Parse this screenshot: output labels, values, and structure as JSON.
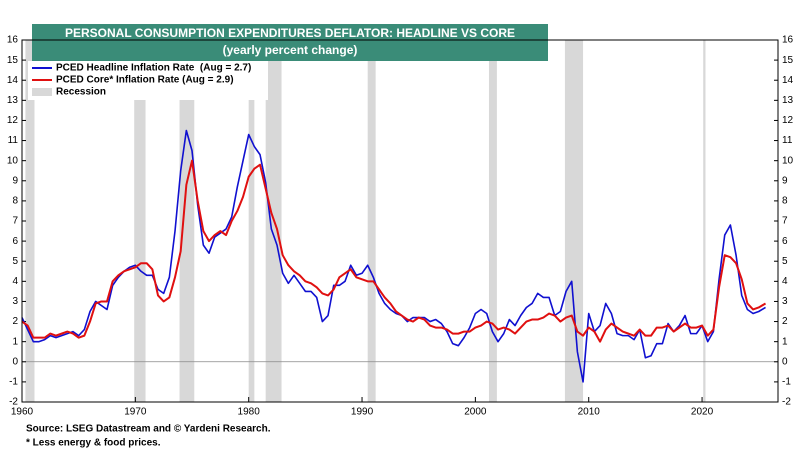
{
  "chart_data": {
    "type": "line",
    "title": "PERSONAL CONSUMPTION EXPENDITURES DEFLATOR: HEADLINE VS CORE",
    "subtitle": "(yearly percent change)",
    "source": "Source: LSEG Datastream and © Yardeni Research.",
    "note": "* Less energy & food prices.",
    "title_color": "#3a8c78",
    "x": [
      1960.0,
      1960.5,
      1961.0,
      1961.5,
      1962.0,
      1962.5,
      1963.0,
      1963.5,
      1964.0,
      1964.5,
      1965.0,
      1965.5,
      1966.0,
      1966.5,
      1967.0,
      1967.5,
      1968.0,
      1968.5,
      1969.0,
      1969.5,
      1970.0,
      1970.5,
      1971.0,
      1971.5,
      1972.0,
      1972.5,
      1973.0,
      1973.5,
      1974.0,
      1974.5,
      1975.0,
      1975.5,
      1976.0,
      1976.5,
      1977.0,
      1977.5,
      1978.0,
      1978.5,
      1979.0,
      1979.5,
      1980.0,
      1980.5,
      1981.0,
      1981.5,
      1982.0,
      1982.5,
      1983.0,
      1983.5,
      1984.0,
      1984.5,
      1985.0,
      1985.5,
      1986.0,
      1986.5,
      1987.0,
      1987.5,
      1988.0,
      1988.5,
      1989.0,
      1989.5,
      1990.0,
      1990.5,
      1991.0,
      1991.5,
      1992.0,
      1992.5,
      1993.0,
      1993.5,
      1994.0,
      1994.5,
      1995.0,
      1995.5,
      1996.0,
      1996.5,
      1997.0,
      1997.5,
      1998.0,
      1998.5,
      1999.0,
      1999.5,
      2000.0,
      2000.5,
      2001.0,
      2001.5,
      2002.0,
      2002.5,
      2003.0,
      2003.5,
      2004.0,
      2004.5,
      2005.0,
      2005.5,
      2006.0,
      2006.5,
      2007.0,
      2007.5,
      2008.0,
      2008.5,
      2009.0,
      2009.5,
      2010.0,
      2010.5,
      2011.0,
      2011.5,
      2012.0,
      2012.5,
      2013.0,
      2013.5,
      2014.0,
      2014.5,
      2015.0,
      2015.5,
      2016.0,
      2016.5,
      2017.0,
      2017.5,
      2018.0,
      2018.5,
      2019.0,
      2019.5,
      2020.0,
      2020.5,
      2021.0,
      2021.5,
      2022.0,
      2022.5,
      2023.0,
      2023.5,
      2024.0,
      2024.5,
      2025.0,
      2025.6
    ],
    "series": [
      {
        "name": "PCED Headline Inflation Rate  (Aug = 2.7)",
        "color": "#1010d0",
        "values": [
          2.2,
          1.6,
          1.0,
          1.0,
          1.1,
          1.3,
          1.2,
          1.3,
          1.4,
          1.5,
          1.3,
          1.6,
          2.5,
          3.0,
          2.8,
          2.6,
          3.8,
          4.2,
          4.5,
          4.7,
          4.8,
          4.5,
          4.3,
          4.3,
          3.6,
          3.4,
          4.2,
          6.5,
          9.5,
          11.5,
          10.5,
          7.8,
          5.8,
          5.4,
          6.2,
          6.4,
          6.6,
          7.2,
          8.7,
          10.0,
          11.3,
          10.7,
          10.3,
          8.9,
          6.6,
          5.8,
          4.4,
          3.9,
          4.3,
          3.9,
          3.5,
          3.5,
          3.2,
          2.0,
          2.3,
          3.8,
          3.8,
          4.0,
          4.8,
          4.3,
          4.4,
          4.8,
          4.2,
          3.4,
          2.9,
          2.6,
          2.4,
          2.3,
          2.0,
          2.2,
          2.2,
          2.2,
          2.0,
          2.1,
          1.9,
          1.5,
          0.9,
          0.8,
          1.2,
          1.7,
          2.4,
          2.6,
          2.4,
          1.5,
          1.0,
          1.4,
          2.1,
          1.8,
          2.3,
          2.7,
          2.9,
          3.4,
          3.2,
          3.2,
          2.3,
          2.5,
          3.5,
          4.0,
          0.5,
          -1.0,
          2.4,
          1.5,
          1.8,
          2.9,
          2.4,
          1.4,
          1.3,
          1.3,
          1.1,
          1.6,
          0.2,
          0.3,
          0.9,
          0.9,
          1.9,
          1.5,
          1.8,
          2.3,
          1.4,
          1.4,
          1.8,
          1.0,
          1.5,
          4.1,
          6.3,
          6.8,
          5.3,
          3.3,
          2.6,
          2.4,
          2.5,
          2.7
        ]
      },
      {
        "name": "PCED Core* Inflation Rate (Aug = 2.9)",
        "color": "#e01010",
        "values": [
          2.0,
          1.8,
          1.2,
          1.2,
          1.2,
          1.4,
          1.3,
          1.4,
          1.5,
          1.4,
          1.2,
          1.3,
          2.0,
          2.9,
          3.0,
          3.0,
          4.0,
          4.3,
          4.5,
          4.6,
          4.7,
          4.9,
          4.9,
          4.6,
          3.3,
          3.0,
          3.2,
          4.2,
          5.5,
          8.8,
          10.0,
          8.0,
          6.5,
          6.0,
          6.3,
          6.5,
          6.3,
          7.0,
          7.5,
          8.2,
          9.2,
          9.6,
          9.8,
          8.6,
          7.4,
          6.6,
          5.3,
          4.8,
          4.5,
          4.3,
          4.0,
          3.9,
          3.7,
          3.4,
          3.3,
          3.6,
          4.2,
          4.4,
          4.6,
          4.2,
          4.1,
          4.0,
          4.0,
          3.6,
          3.2,
          2.9,
          2.5,
          2.3,
          2.1,
          2.0,
          2.2,
          2.1,
          1.8,
          1.7,
          1.7,
          1.6,
          1.4,
          1.4,
          1.5,
          1.5,
          1.7,
          1.8,
          2.0,
          1.9,
          1.6,
          1.7,
          1.6,
          1.4,
          1.7,
          2.0,
          2.1,
          2.1,
          2.2,
          2.4,
          2.3,
          2.0,
          2.2,
          2.3,
          1.5,
          1.3,
          1.7,
          1.5,
          1.0,
          1.6,
          1.9,
          1.7,
          1.5,
          1.4,
          1.3,
          1.6,
          1.3,
          1.3,
          1.7,
          1.7,
          1.8,
          1.5,
          1.7,
          1.9,
          1.7,
          1.7,
          1.8,
          1.3,
          1.6,
          3.7,
          5.3,
          5.2,
          4.9,
          4.1,
          2.9,
          2.6,
          2.7,
          2.9
        ]
      }
    ],
    "recession_label": "Recession",
    "recession_color": "#d8d8d8",
    "recessions": [
      [
        1960.3,
        1961.1
      ],
      [
        1969.9,
        1970.9
      ],
      [
        1973.9,
        1975.2
      ],
      [
        1980.0,
        1980.5
      ],
      [
        1981.5,
        1982.9
      ],
      [
        1990.5,
        1991.2
      ],
      [
        2001.2,
        2001.9
      ],
      [
        2007.9,
        2009.5
      ],
      [
        2020.1,
        2020.3
      ]
    ],
    "xlim": [
      1960,
      2026.7
    ],
    "xticks": [
      1960,
      1970,
      1980,
      1990,
      2000,
      2010,
      2020
    ],
    "ylim": [
      -2,
      16
    ],
    "yticks": [
      -2,
      -1,
      0,
      1,
      2,
      3,
      4,
      5,
      6,
      7,
      8,
      9,
      10,
      11,
      12,
      13,
      14,
      15,
      16
    ],
    "y2lim": [
      -2,
      16
    ],
    "y2ticks": [
      -2,
      -1,
      0,
      1,
      2,
      3,
      4,
      5,
      6,
      7,
      8,
      9,
      10,
      11,
      12,
      13,
      14,
      15,
      16
    ],
    "legend": "upper left"
  }
}
